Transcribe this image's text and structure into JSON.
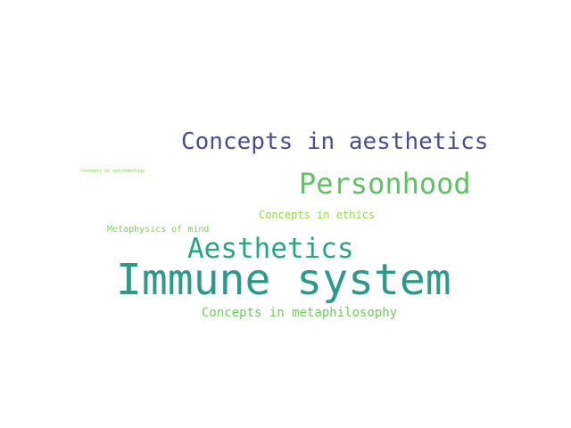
{
  "word_cloud": {
    "words": [
      {
        "text": "Concepts in aesthetics",
        "color": "#4b4f8f"
      },
      {
        "text": "Personhood",
        "color": "#5cc262"
      },
      {
        "text": "Concepts in epistemology",
        "color": "#7fd34e"
      },
      {
        "text": "Concepts in ethics",
        "color": "#95d840"
      },
      {
        "text": "Metaphysics of mind",
        "color": "#7ad151"
      },
      {
        "text": "Aesthetics",
        "color": "#22a884"
      },
      {
        "text": "Immune system",
        "color": "#2a9a8a"
      },
      {
        "text": "Concepts in metaphilosophy",
        "color": "#6ccd5a"
      }
    ]
  }
}
